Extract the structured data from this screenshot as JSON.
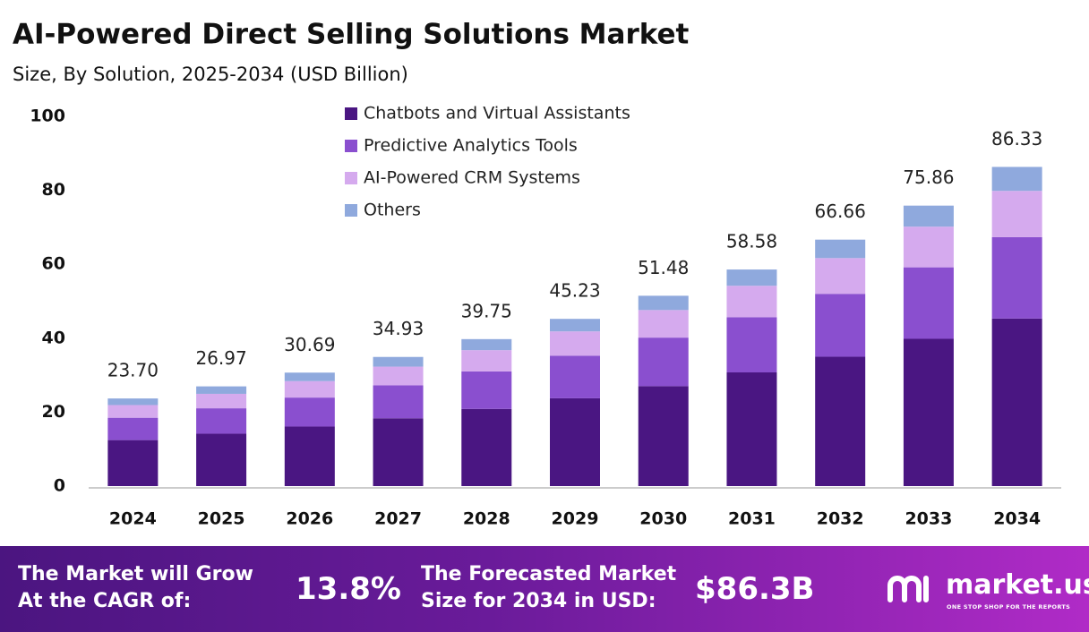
{
  "chart_data": {
    "type": "stacked_bar",
    "title": "AI-Powered Direct Selling Solutions Market",
    "subtitle": "Size, By Solution, 2025-2034 (USD Billion)",
    "categories": [
      "2024",
      "2025",
      "2026",
      "2027",
      "2028",
      "2029",
      "2030",
      "2031",
      "2032",
      "2033",
      "2034"
    ],
    "series": [
      {
        "name": "Chatbots and Virtual Assistants",
        "color": "#4a1682",
        "values": [
          12.44,
          14.16,
          16.11,
          18.34,
          20.87,
          23.75,
          27.03,
          30.75,
          35.0,
          39.83,
          45.32
        ]
      },
      {
        "name": "Predictive Analytics Tools",
        "color": "#8a4fcf",
        "values": [
          6.04,
          6.88,
          7.83,
          8.91,
          10.14,
          11.53,
          13.13,
          14.94,
          17.0,
          19.34,
          22.01
        ]
      },
      {
        "name": "AI-Powered CRM Systems",
        "color": "#d5aaee",
        "values": [
          3.44,
          3.91,
          4.45,
          5.06,
          5.76,
          6.56,
          7.46,
          8.49,
          9.67,
          11.0,
          12.52
        ]
      },
      {
        "name": "Others",
        "color": "#8fa9dd",
        "values": [
          1.78,
          2.02,
          2.3,
          2.62,
          2.98,
          3.39,
          3.86,
          4.4,
          4.99,
          5.69,
          6.48
        ]
      }
    ],
    "totals": {
      "values": [
        23.7,
        26.97,
        30.69,
        34.93,
        39.75,
        45.23,
        51.48,
        58.58,
        66.66,
        75.86,
        86.33
      ],
      "value_labels": [
        "23.70",
        "26.97",
        "30.69",
        "34.93",
        "39.75",
        "45.23",
        "51.48",
        "58.58",
        "66.66",
        "75.86",
        "86.33"
      ]
    },
    "ylim": [
      0,
      100
    ],
    "yticks": [
      0,
      20,
      40,
      60,
      80,
      100
    ],
    "grid": false
  },
  "footer": {
    "cagr_text": [
      "The Market will Grow",
      "At the CAGR of:"
    ],
    "cagr_value": "13.8%",
    "forecast_text": [
      "The Forecasted Market",
      "Size for 2034 in USD:"
    ],
    "forecast_value": "$86.3B",
    "brand": "market.us",
    "tagline": "ONE STOP SHOP FOR THE REPORTS"
  }
}
